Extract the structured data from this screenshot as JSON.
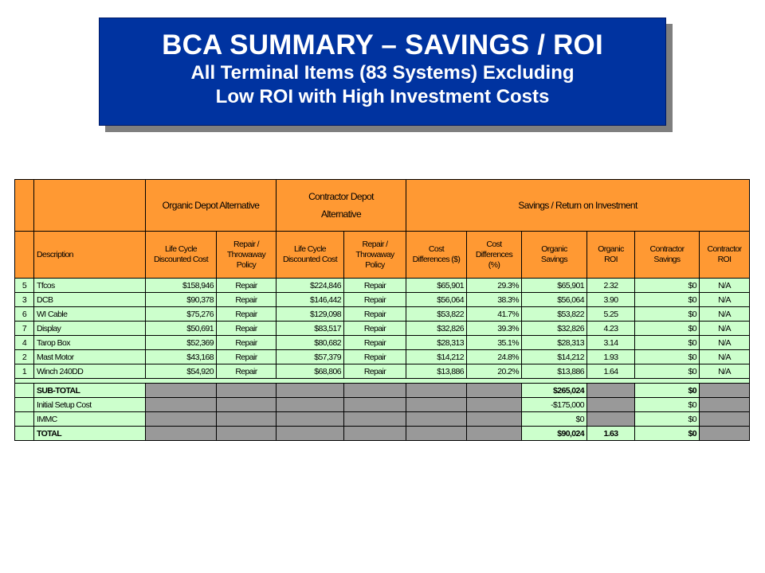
{
  "title": {
    "line1": "BCA SUMMARY – SAVINGS / ROI",
    "line2": "All Terminal Items (83 Systems) Excluding",
    "line3": "Low ROI with High Investment Costs"
  },
  "table": {
    "groups": {
      "organic": "Organic Depot Alternative",
      "contractor_line1": "Contractor Depot",
      "contractor_line2": "Alternative",
      "savings": "Savings / Return on Investment"
    },
    "headers": {
      "description": "Description",
      "org_lcc_1": "Life Cycle",
      "org_lcc_2": "Discounted Cost",
      "org_rep_1": "Repair /",
      "org_rep_2": "Throwaway",
      "org_rep_3": "Policy",
      "con_lcc_1": "Life Cycle",
      "con_lcc_2": "Discounted Cost",
      "con_rep_1": "Repair /",
      "con_rep_2": "Throwaway",
      "con_rep_3": "Policy",
      "cost_diff_1": "Cost",
      "cost_diff_2": "Differences ($)",
      "cost_pct_1": "Cost",
      "cost_pct_2": "Differences",
      "cost_pct_3": "(%)",
      "org_sav_1": "Organic",
      "org_sav_2": "Savings",
      "org_roi_1": "Organic",
      "org_roi_2": "ROI",
      "con_sav_1": "Contractor",
      "con_sav_2": "Savings",
      "con_roi_1": "Contractor",
      "con_roi_2": "ROI"
    },
    "rows": [
      {
        "rank": "5",
        "desc": "Tfcos",
        "org_lcc": "$158,946",
        "org_rep": "Repair",
        "con_lcc": "$224,846",
        "con_rep": "Repair",
        "diff": "$65,901",
        "pct": "29.3%",
        "org_sav": "$65,901",
        "org_roi": "2.32",
        "con_sav": "$0",
        "con_roi": "N/A"
      },
      {
        "rank": "3",
        "desc": "DCB",
        "org_lcc": "$90,378",
        "org_rep": "Repair",
        "con_lcc": "$146,442",
        "con_rep": "Repair",
        "diff": "$56,064",
        "pct": "38.3%",
        "org_sav": "$56,064",
        "org_roi": "3.90",
        "con_sav": "$0",
        "con_roi": "N/A"
      },
      {
        "rank": "6",
        "desc": "WI Cable",
        "org_lcc": "$75,276",
        "org_rep": "Repair",
        "con_lcc": "$129,098",
        "con_rep": "Repair",
        "diff": "$53,822",
        "pct": "41.7%",
        "org_sav": "$53,822",
        "org_roi": "5.25",
        "con_sav": "$0",
        "con_roi": "N/A"
      },
      {
        "rank": "7",
        "desc": "Display",
        "org_lcc": "$50,691",
        "org_rep": "Repair",
        "con_lcc": "$83,517",
        "con_rep": "Repair",
        "diff": "$32,826",
        "pct": "39.3%",
        "org_sav": "$32,826",
        "org_roi": "4.23",
        "con_sav": "$0",
        "con_roi": "N/A"
      },
      {
        "rank": "4",
        "desc": "Tarop Box",
        "org_lcc": "$52,369",
        "org_rep": "Repair",
        "con_lcc": "$80,682",
        "con_rep": "Repair",
        "diff": "$28,313",
        "pct": "35.1%",
        "org_sav": "$28,313",
        "org_roi": "3.14",
        "con_sav": "$0",
        "con_roi": "N/A"
      },
      {
        "rank": "2",
        "desc": "Mast Motor",
        "org_lcc": "$43,168",
        "org_rep": "Repair",
        "con_lcc": "$57,379",
        "con_rep": "Repair",
        "diff": "$14,212",
        "pct": "24.8%",
        "org_sav": "$14,212",
        "org_roi": "1.93",
        "con_sav": "$0",
        "con_roi": "N/A"
      },
      {
        "rank": "1",
        "desc": "Winch 240DD",
        "org_lcc": "$54,920",
        "org_rep": "Repair",
        "con_lcc": "$68,806",
        "con_rep": "Repair",
        "diff": "$13,886",
        "pct": "20.2%",
        "org_sav": "$13,886",
        "org_roi": "1.64",
        "con_sav": "$0",
        "con_roi": "N/A"
      }
    ],
    "summary": {
      "subtotal_label": "SUB-TOTAL",
      "subtotal_org_sav": "$265,024",
      "subtotal_con_sav": "$0",
      "setup_label": "Initial Setup Cost",
      "setup_org_sav": "-$175,000",
      "setup_con_sav": "$0",
      "immc_label": "IMMC",
      "immc_org_sav": "$0",
      "immc_con_sav": "$0",
      "total_label": "TOTAL",
      "total_org_sav": "$90,024",
      "total_org_roi": "1.63",
      "total_con_sav": "$0"
    }
  },
  "colors": {
    "title_bg": "#0033a0",
    "header_bg": "#ff9933",
    "row_bg": "#ccffcc",
    "blocked_bg": "#999999"
  }
}
